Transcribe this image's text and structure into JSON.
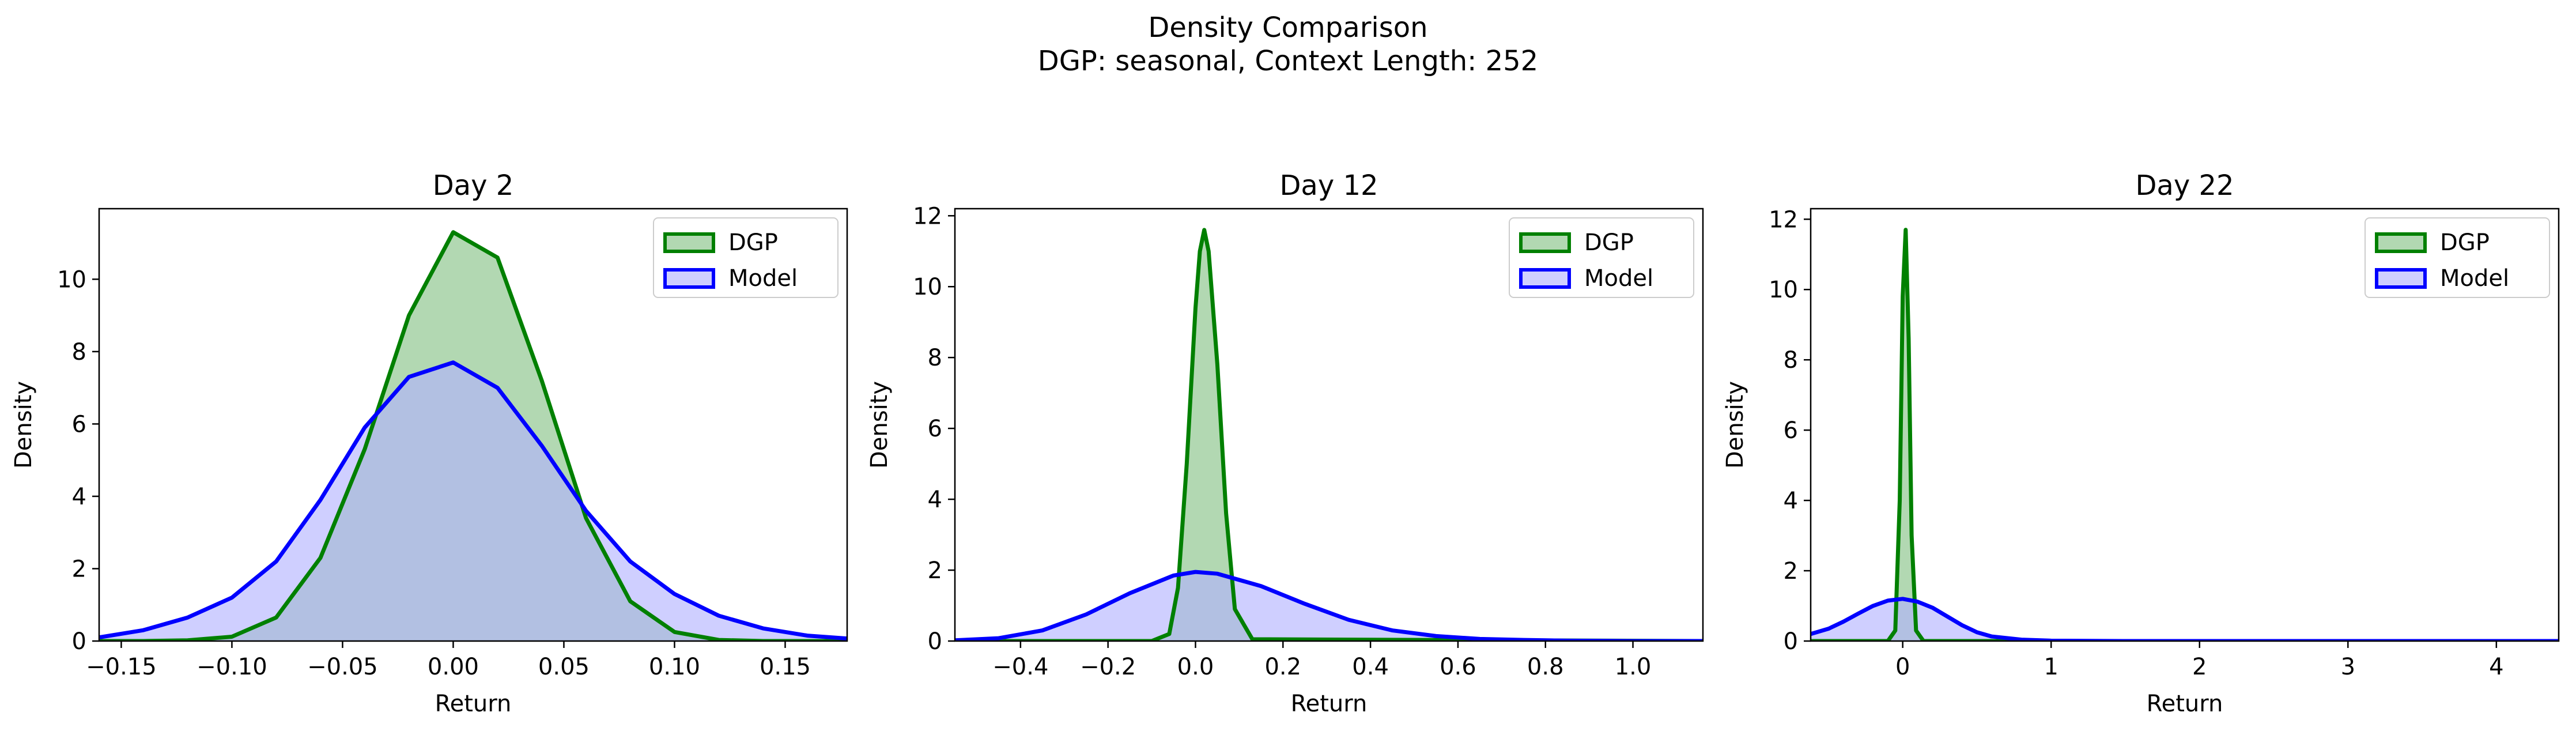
{
  "figure": {
    "title": "Density Comparison",
    "subtitle": "DGP: seasonal, Context Length: 252"
  },
  "colors": {
    "dgp_line": "#008000",
    "dgp_fill": "#b2d8b2",
    "model_line": "#0000ff",
    "model_fill": "#b2b2ff",
    "overlap_fill": "#7f98c8"
  },
  "chart_data": [
    {
      "type": "area",
      "title": "Day 2",
      "xlabel": "Return",
      "ylabel": "Density",
      "xlim": [
        -0.16,
        0.178
      ],
      "ylim": [
        0,
        11.95
      ],
      "xticks": [
        -0.15,
        -0.1,
        -0.05,
        0.0,
        0.05,
        0.1,
        0.15
      ],
      "xtick_labels": [
        "−0.15",
        "−0.10",
        "−0.05",
        "0.00",
        "0.05",
        "0.10",
        "0.15"
      ],
      "yticks": [
        0,
        2,
        4,
        6,
        8,
        10
      ],
      "ytick_labels": [
        "0",
        "2",
        "4",
        "6",
        "8",
        "10"
      ],
      "legend": "top-right",
      "series": [
        {
          "name": "DGP",
          "x": [
            -0.16,
            -0.14,
            -0.12,
            -0.1,
            -0.08,
            -0.06,
            -0.04,
            -0.02,
            0.0,
            0.02,
            0.04,
            0.06,
            0.08,
            0.1,
            0.12,
            0.14,
            0.16,
            0.178
          ],
          "y": [
            0.0,
            0.0,
            0.02,
            0.12,
            0.65,
            2.3,
            5.3,
            9.0,
            11.3,
            10.6,
            7.2,
            3.4,
            1.1,
            0.25,
            0.03,
            0.0,
            0.0,
            0.0
          ]
        },
        {
          "name": "Model",
          "x": [
            -0.16,
            -0.14,
            -0.12,
            -0.1,
            -0.08,
            -0.06,
            -0.04,
            -0.02,
            0.0,
            0.02,
            0.04,
            0.06,
            0.08,
            0.1,
            0.12,
            0.14,
            0.16,
            0.178
          ],
          "y": [
            0.1,
            0.3,
            0.65,
            1.2,
            2.2,
            3.9,
            5.9,
            7.3,
            7.7,
            7.0,
            5.4,
            3.6,
            2.2,
            1.3,
            0.7,
            0.35,
            0.15,
            0.07
          ]
        }
      ]
    },
    {
      "type": "area",
      "title": "Day 12",
      "xlabel": "Return",
      "ylabel": "Density",
      "xlim": [
        -0.55,
        1.16
      ],
      "ylim": [
        0,
        12.2
      ],
      "xticks": [
        -0.4,
        -0.2,
        0.0,
        0.2,
        0.4,
        0.6,
        0.8,
        1.0
      ],
      "xtick_labels": [
        "−0.4",
        "−0.2",
        "0.0",
        "0.2",
        "0.4",
        "0.6",
        "0.8",
        "1.0"
      ],
      "yticks": [
        0,
        2,
        4,
        6,
        8,
        10,
        12
      ],
      "ytick_labels": [
        "0",
        "2",
        "4",
        "6",
        "8",
        "10",
        "12"
      ],
      "legend": "top-right",
      "series": [
        {
          "name": "DGP",
          "x": [
            -0.55,
            -0.1,
            -0.06,
            -0.04,
            -0.02,
            0.0,
            0.01,
            0.02,
            0.03,
            0.05,
            0.07,
            0.09,
            0.13,
            1.16
          ],
          "y": [
            0.0,
            0.0,
            0.2,
            1.5,
            5.0,
            9.4,
            11.0,
            11.6,
            11.0,
            7.8,
            3.6,
            0.9,
            0.05,
            0.0
          ]
        },
        {
          "name": "Model",
          "x": [
            -0.55,
            -0.45,
            -0.35,
            -0.25,
            -0.15,
            -0.05,
            0.0,
            0.05,
            0.15,
            0.25,
            0.35,
            0.45,
            0.55,
            0.65,
            0.75,
            0.85,
            1.0,
            1.16
          ],
          "y": [
            0.02,
            0.08,
            0.3,
            0.75,
            1.35,
            1.85,
            1.95,
            1.9,
            1.55,
            1.05,
            0.6,
            0.3,
            0.14,
            0.06,
            0.03,
            0.01,
            0.0,
            0.0
          ]
        }
      ]
    },
    {
      "type": "area",
      "title": "Day 22",
      "xlabel": "Return",
      "ylabel": "Density",
      "xlim": [
        -0.62,
        4.42
      ],
      "ylim": [
        0,
        12.3
      ],
      "xticks": [
        0,
        1,
        2,
        3,
        4
      ],
      "xtick_labels": [
        "0",
        "1",
        "2",
        "3",
        "4"
      ],
      "yticks": [
        0,
        2,
        4,
        6,
        8,
        10,
        12
      ],
      "ytick_labels": [
        "0",
        "2",
        "4",
        "6",
        "8",
        "10",
        "12"
      ],
      "legend": "top-right",
      "series": [
        {
          "name": "DGP",
          "x": [
            -0.62,
            -0.1,
            -0.05,
            -0.02,
            0.0,
            0.02,
            0.04,
            0.06,
            0.09,
            0.14,
            4.42
          ],
          "y": [
            0.0,
            0.0,
            0.3,
            4.0,
            9.8,
            11.7,
            8.6,
            3.0,
            0.3,
            0.0,
            0.0
          ]
        },
        {
          "name": "Model",
          "x": [
            -0.62,
            -0.5,
            -0.4,
            -0.3,
            -0.2,
            -0.1,
            0.0,
            0.1,
            0.2,
            0.3,
            0.4,
            0.5,
            0.6,
            0.8,
            1.0,
            1.5,
            2.0,
            4.42
          ],
          "y": [
            0.2,
            0.35,
            0.55,
            0.78,
            1.0,
            1.15,
            1.2,
            1.12,
            0.95,
            0.7,
            0.45,
            0.25,
            0.13,
            0.04,
            0.01,
            0.0,
            0.0,
            0.0
          ]
        }
      ]
    }
  ]
}
